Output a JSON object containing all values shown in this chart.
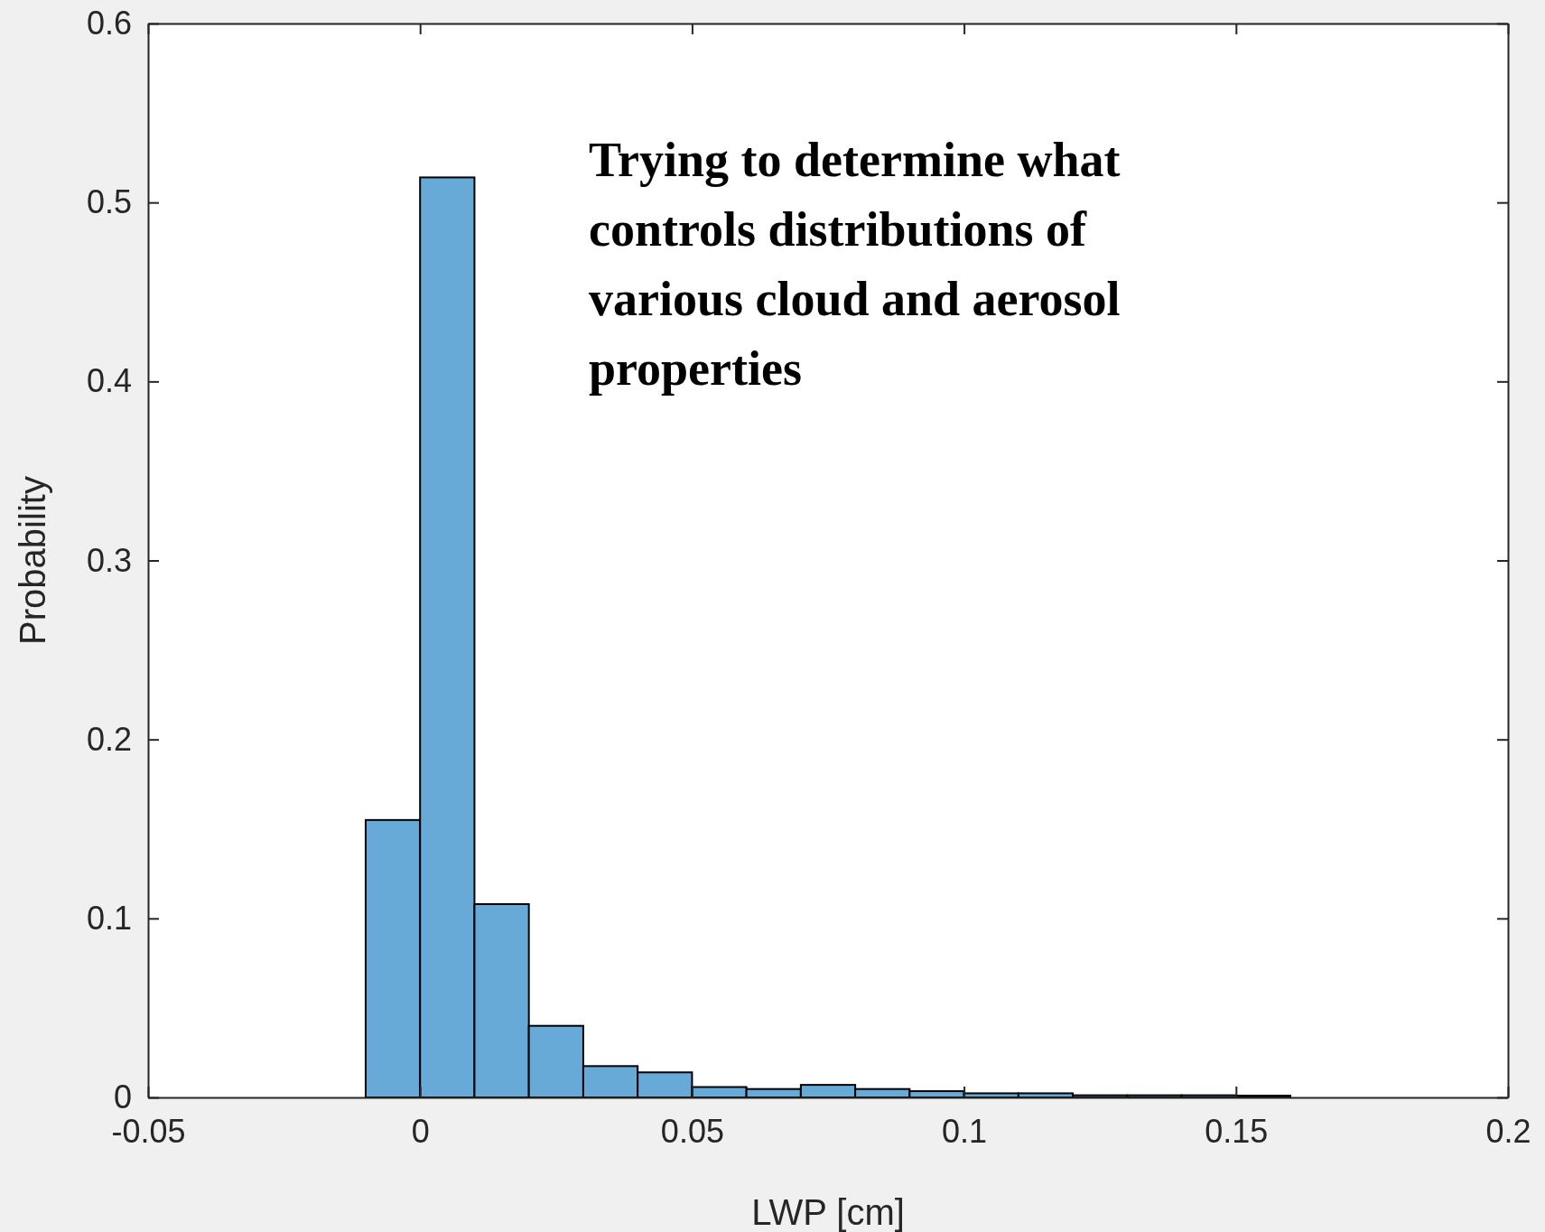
{
  "chart_data": {
    "type": "histogram",
    "xlabel": "LWP [cm]",
    "ylabel": "Probability",
    "bins": [
      -0.01,
      0,
      0.01,
      0.02,
      0.03,
      0.04,
      0.05,
      0.06,
      0.07,
      0.08,
      0.09,
      0.1,
      0.11,
      0.12,
      0.13,
      0.14,
      0.15,
      0.16
    ],
    "values": [
      0.155,
      0.514,
      0.108,
      0.04,
      0.0175,
      0.014,
      0.0058,
      0.0047,
      0.007,
      0.0047,
      0.0035,
      0.0023,
      0.0023,
      0.0012,
      0.0012,
      0.0012,
      0.001
    ],
    "color": "#67aad8",
    "xlim": [
      -0.05,
      0.2
    ],
    "xticks": [
      -0.05,
      0,
      0.05,
      0.1,
      0.15,
      0.2
    ],
    "ylim": [
      0,
      0.6
    ],
    "yticks": [
      0,
      0.1,
      0.2,
      0.3,
      0.4,
      0.5,
      0.6
    ],
    "grid": false,
    "annotations": [
      "Trying to determine what controls distributions of various cloud and aerosol properties"
    ]
  }
}
